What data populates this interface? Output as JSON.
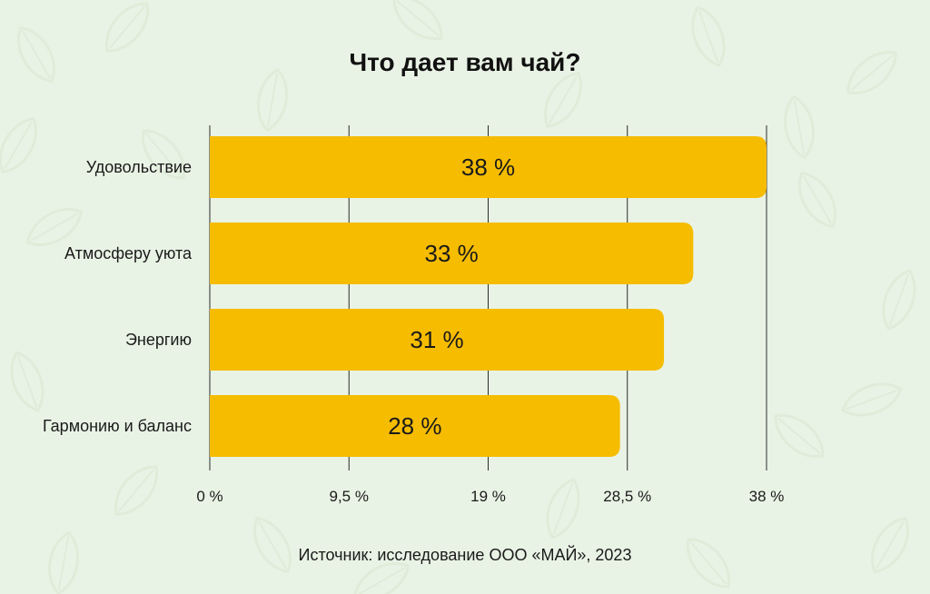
{
  "chart_data": {
    "type": "bar",
    "orientation": "horizontal",
    "title": "Что дает вам чай?",
    "categories": [
      "Удовольствие",
      "Атмосферу уюта",
      "Энергию",
      "Гармонию и баланс"
    ],
    "values": [
      38,
      33,
      31,
      28
    ],
    "value_labels": [
      "38 %",
      "33 %",
      "31 %",
      "28 %"
    ],
    "xlim": [
      0,
      38
    ],
    "x_ticks": [
      0,
      9.5,
      19,
      28.5,
      38
    ],
    "x_tick_labels": [
      "0 %",
      "9,5 %",
      "19 %",
      "28,5 %",
      "38 %"
    ],
    "xlabel": "",
    "ylabel": "",
    "grid": "vertical",
    "legend": "none",
    "source": "Источник: исследование ООО «МАЙ», 2023",
    "colors": {
      "bar": "#f6bc00",
      "background": "#e9f3e5",
      "gridline": "#2b2b2b",
      "text": "#1a1a1a"
    }
  }
}
